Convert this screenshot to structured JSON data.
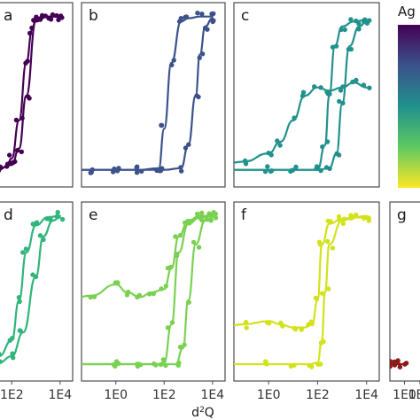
{
  "chart_data": {
    "type": "scatter",
    "xlabel": "d²Q",
    "xlabel_base": "d",
    "xlabel_sup": "2",
    "xlabel_tail": "Q",
    "x_scale": "log10",
    "x_tick_labels": [
      "1E0",
      "1E2",
      "1E4"
    ],
    "x_tick_values": [
      1,
      100,
      10000
    ],
    "legend": {
      "title_visible": "Ag",
      "position": "right",
      "colors_top_to_bottom": [
        "#440154",
        "#3b528b",
        "#21918c",
        "#5ec962",
        "#fde725"
      ]
    },
    "panels": [
      {
        "label": "a",
        "color": "#440154",
        "series": [
          {
            "name": "",
            "x": [
              0.1,
              3,
              10,
              30,
              60,
              100,
              200,
              400,
              700,
              1000,
              2000,
              5000,
              10000
            ],
            "y": [
              0.05,
              0.04,
              0.05,
              0.05,
              0.07,
              0.12,
              0.35,
              0.7,
              0.9,
              0.97,
              0.98,
              0.98,
              0.98
            ]
          },
          {
            "name": "",
            "x": [
              0.1,
              3,
              10,
              30,
              100,
              200,
              400,
              1000,
              3000,
              10000
            ],
            "y": [
              0.05,
              0.05,
              0.05,
              0.06,
              0.08,
              0.18,
              0.5,
              0.95,
              0.98,
              0.98
            ]
          }
        ]
      },
      {
        "label": "b",
        "color": "#3b528b",
        "series": [
          {
            "name": "",
            "x": [
              0.01,
              0.1,
              1,
              10,
              60,
              100,
              200,
              500,
              1000,
              3000,
              10000
            ],
            "y": [
              0.05,
              0.05,
              0.05,
              0.05,
              0.06,
              0.3,
              0.7,
              0.95,
              0.97,
              0.98,
              0.98
            ]
          },
          {
            "name": "",
            "x": [
              0.01,
              0.1,
              1,
              10,
              100,
              500,
              1000,
              2000,
              3000,
              5000,
              10000
            ],
            "y": [
              0.05,
              0.05,
              0.05,
              0.05,
              0.05,
              0.06,
              0.2,
              0.5,
              0.75,
              0.92,
              0.97
            ]
          }
        ]
      },
      {
        "label": "c",
        "color": "#21918c",
        "series": [
          {
            "name": "",
            "x": [
              0.01,
              0.1,
              1,
              3,
              10,
              30,
              100,
              300,
              1000,
              3000,
              10000
            ],
            "y": [
              0.08,
              0.1,
              0.15,
              0.22,
              0.35,
              0.5,
              0.55,
              0.53,
              0.55,
              0.58,
              0.55
            ]
          },
          {
            "name": "",
            "x": [
              0.01,
              1,
              10,
              100,
              200,
              300,
              500,
              1000,
              3000,
              10000
            ],
            "y": [
              0.05,
              0.05,
              0.05,
              0.05,
              0.2,
              0.5,
              0.8,
              0.92,
              0.95,
              0.96
            ]
          },
          {
            "name": "",
            "x": [
              0.01,
              1,
              10,
              100,
              300,
              600,
              1000,
              2000,
              5000,
              10000
            ],
            "y": [
              0.05,
              0.05,
              0.05,
              0.05,
              0.06,
              0.15,
              0.45,
              0.8,
              0.92,
              0.95
            ]
          }
        ]
      },
      {
        "label": "d",
        "color": "#31b57b",
        "series": [
          {
            "name": "",
            "x": [
              1,
              10,
              30,
              100,
              200,
              400,
              1000,
              3000,
              10000
            ],
            "y": [
              0.05,
              0.06,
              0.1,
              0.2,
              0.45,
              0.75,
              0.92,
              0.97,
              0.98
            ]
          },
          {
            "name": "",
            "x": [
              1,
              10,
              30,
              100,
              300,
              1000,
              2000,
              5000,
              10000
            ],
            "y": [
              0.05,
              0.05,
              0.06,
              0.1,
              0.25,
              0.6,
              0.85,
              0.95,
              0.97
            ]
          }
        ]
      },
      {
        "label": "e",
        "color": "#7ad151",
        "series": [
          {
            "name": "",
            "x": [
              0.01,
              0.1,
              1,
              3,
              10,
              30,
              100,
              200,
              400,
              1000,
              3000,
              10000
            ],
            "y": [
              0.45,
              0.48,
              0.55,
              0.5,
              0.47,
              0.5,
              0.52,
              0.65,
              0.85,
              0.95,
              0.98,
              0.98
            ]
          },
          {
            "name": "",
            "x": [
              0.01,
              1,
              10,
              50,
              100,
              200,
              400,
              1000,
              3000,
              10000
            ],
            "y": [
              0.05,
              0.05,
              0.05,
              0.05,
              0.06,
              0.3,
              0.75,
              0.93,
              0.97,
              0.98
            ]
          },
          {
            "name": "",
            "x": [
              0.01,
              1,
              10,
              100,
              300,
              600,
              1000,
              2000,
              5000,
              10000
            ],
            "y": [
              0.05,
              0.05,
              0.05,
              0.05,
              0.05,
              0.15,
              0.45,
              0.8,
              0.95,
              0.97
            ]
          }
        ]
      },
      {
        "label": "f",
        "color": "#d2e21b",
        "series": [
          {
            "name": "",
            "x": [
              0.01,
              0.1,
              1,
              3,
              10,
              30,
              60,
              100,
              150,
              300,
              1000,
              3000,
              10000
            ],
            "y": [
              0.28,
              0.3,
              0.32,
              0.3,
              0.28,
              0.28,
              0.3,
              0.45,
              0.8,
              0.93,
              0.96,
              0.97,
              0.97
            ]
          },
          {
            "name": "",
            "x": [
              0.01,
              1,
              10,
              50,
              100,
              150,
              200,
              300,
              1000,
              3000,
              10000
            ],
            "y": [
              0.05,
              0.05,
              0.05,
              0.05,
              0.06,
              0.2,
              0.5,
              0.8,
              0.95,
              0.97,
              0.98
            ]
          }
        ]
      },
      {
        "label": "g",
        "color": "#8b1a1a",
        "series": [
          {
            "name": "",
            "x": [
              0.01,
              0.03,
              0.1,
              0.3,
              1
            ],
            "y": [
              0.05,
              0.05,
              0.05,
              0.05,
              0.05
            ]
          }
        ]
      }
    ]
  }
}
